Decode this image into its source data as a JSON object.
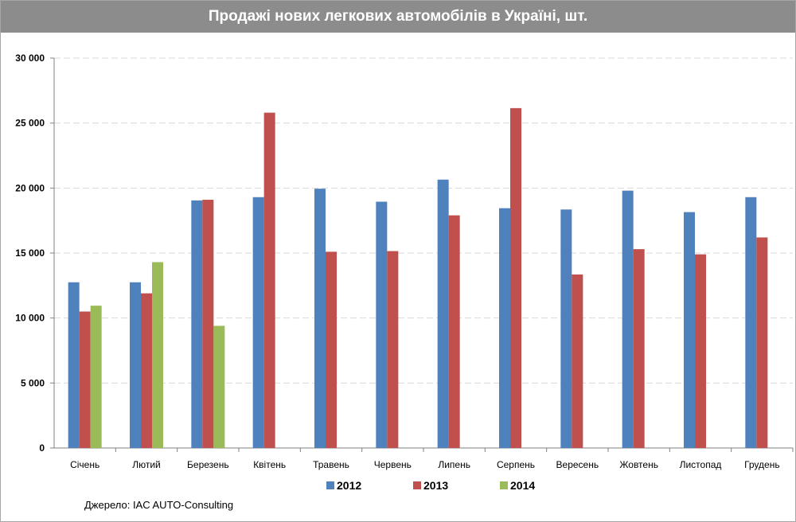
{
  "chart_data": {
    "type": "bar",
    "title": "Продажі нових легкових автомобілів в Україні, шт.",
    "categories": [
      "Січень",
      "Лютий",
      "Березень",
      "Квітень",
      "Травень",
      "Червень",
      "Липень",
      "Серпень",
      "Вересень",
      "Жовтень",
      "Листопад",
      "Грудень"
    ],
    "series": [
      {
        "name": "2012",
        "color": "#4f81bd",
        "values": [
          12750,
          12750,
          19050,
          19300,
          19950,
          18950,
          20650,
          18450,
          18350,
          19800,
          18150,
          19300
        ]
      },
      {
        "name": "2013",
        "color": "#c0504d",
        "values": [
          10500,
          11900,
          19100,
          25800,
          15100,
          15150,
          17900,
          26150,
          13350,
          15300,
          14900,
          16200
        ]
      },
      {
        "name": "2014",
        "color": "#9bbb59",
        "values": [
          10950,
          14300,
          9400,
          null,
          null,
          null,
          null,
          null,
          null,
          null,
          null,
          null
        ]
      }
    ],
    "ylim": [
      0,
      30000
    ],
    "yticks": [
      0,
      5000,
      10000,
      15000,
      20000,
      25000,
      30000
    ],
    "ytick_labels": [
      "0",
      "5 000",
      "10 000",
      "15 000",
      "20 000",
      "25 000",
      "30 000"
    ],
    "grid": true,
    "legend_position": "bottom"
  },
  "source": "Джерело: IAC AUTO-Consulting",
  "colors": {
    "title_bar": "#8c8c8c",
    "grid": "#d9d9d9"
  }
}
